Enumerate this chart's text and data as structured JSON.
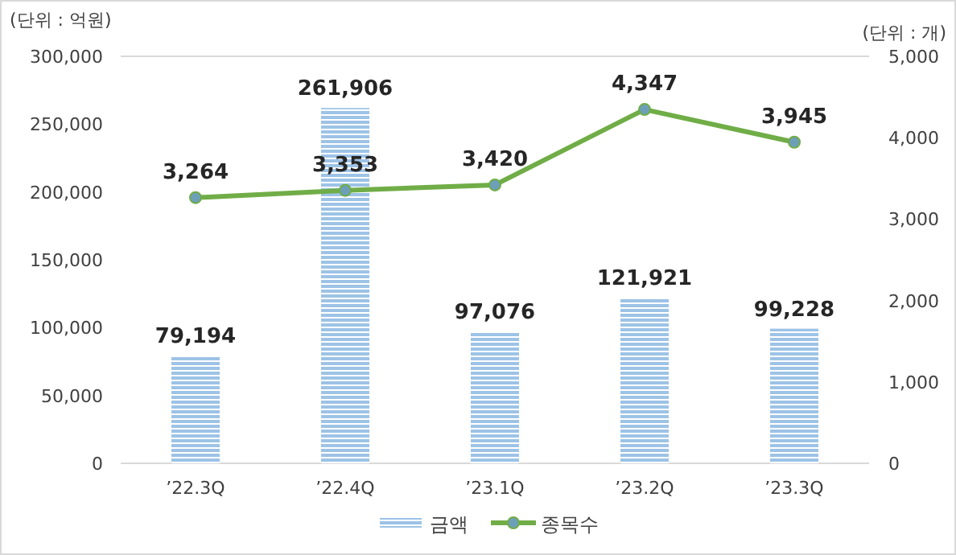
{
  "chart_data": {
    "type": "bar",
    "ylabel": "(단위 : 억원)",
    "y2label": "(단위 : 개)",
    "categories": [
      "’22.3Q",
      "’22.4Q",
      "’23.1Q",
      "’23.2Q",
      "’23.3Q"
    ],
    "series": [
      {
        "name": "금액",
        "color": "#9dc3e6",
        "values": [
          79194,
          261906,
          97076,
          121921,
          99228
        ],
        "value_labels": [
          "79,194",
          "261,906",
          "97,076",
          "121,921",
          "99,228"
        ]
      },
      {
        "name": "종목수",
        "type": "line",
        "axis": "y2",
        "color": "#70ad47",
        "marker": "circle",
        "values": [
          3264,
          3353,
          3420,
          4347,
          3945
        ],
        "value_labels": [
          "3,264",
          "3,353",
          "3,420",
          "4,347",
          "3,945"
        ]
      }
    ],
    "ylim": [
      0,
      300000
    ],
    "yticks": [
      {
        "value": 0,
        "label": "0"
      },
      {
        "value": 50000,
        "label": "50,000"
      },
      {
        "value": 100000,
        "label": "100,000"
      },
      {
        "value": 150000,
        "label": "150,000"
      },
      {
        "value": 200000,
        "label": "200,000"
      },
      {
        "value": 250000,
        "label": "250,000"
      },
      {
        "value": 300000,
        "label": "300,000"
      }
    ],
    "y2lim": [
      0,
      5000
    ],
    "y2ticks": [
      {
        "value": 0,
        "label": "0"
      },
      {
        "value": 1000,
        "label": "1,000"
      },
      {
        "value": 2000,
        "label": "2,000"
      },
      {
        "value": 3000,
        "label": "3,000"
      },
      {
        "value": 4000,
        "label": "4,000"
      },
      {
        "value": 5000,
        "label": "5,000"
      }
    ],
    "legend": "bottom",
    "grid": false
  }
}
